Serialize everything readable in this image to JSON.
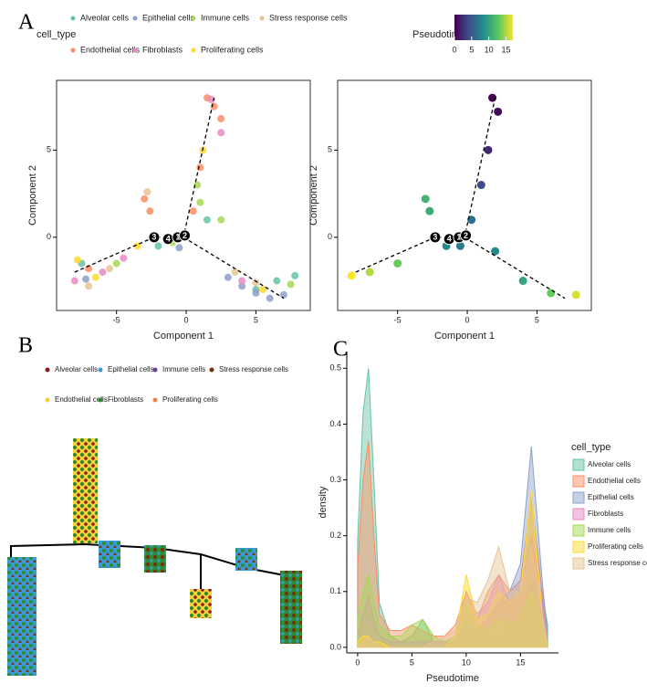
{
  "panel_labels": [
    "A",
    "B",
    "C"
  ],
  "chart_data": [
    {
      "type": "scatter",
      "xlabel": "Component 1",
      "ylabel": "Component 2",
      "xlim": [
        -9.3,
        8.9
      ],
      "ylim": [
        -4.2,
        9
      ],
      "xticks": [
        -5,
        0,
        5
      ],
      "yticks": [
        0,
        5
      ],
      "legend_title": "cell_type",
      "trajectory": {
        "x": [
          -8,
          -2.3,
          -0.2,
          2,
          null,
          -0.2,
          7
        ],
        "y": [
          -2,
          0,
          0,
          8,
          null,
          0,
          -3.5
        ]
      },
      "branch_points": [
        {
          "label": "3",
          "x": -2.3,
          "y": 0
        },
        {
          "label": "4",
          "x": -1.3,
          "y": -0.1
        },
        {
          "label": "1",
          "x": -0.6,
          "y": 0
        },
        {
          "label": "2",
          "x": -0.1,
          "y": 0.1
        }
      ],
      "series": [
        {
          "name": "Alveolar cells",
          "color": "#66c2a5",
          "x": [
            -7.5,
            5,
            6.5,
            7.8,
            1.5,
            -2
          ],
          "y": [
            -1.5,
            -3,
            -2.5,
            -2.2,
            1,
            -0.5
          ]
        },
        {
          "name": "Epithelial cells",
          "color": "#8da0cb",
          "x": [
            3,
            4,
            5,
            6,
            7,
            -0.5,
            -7.2
          ],
          "y": [
            -2.3,
            -2.8,
            -3.2,
            -3.5,
            -3.3,
            -0.6,
            -2.4
          ]
        },
        {
          "name": "Immune cells",
          "color": "#a6d854",
          "x": [
            1,
            2.5,
            -1,
            0.8,
            7.5,
            -5
          ],
          "y": [
            2,
            1,
            -0.3,
            3,
            -2.7,
            -1.5
          ]
        },
        {
          "name": "Stress response cells",
          "color": "#e5c494",
          "x": [
            -7,
            -5.5,
            3.5,
            5,
            -2.8
          ],
          "y": [
            -2.8,
            -1.8,
            -2,
            -2.6,
            2.6
          ]
        },
        {
          "name": "Endothelial cells",
          "color": "#fc8d62",
          "x": [
            1.5,
            2,
            2.5,
            1,
            0.5,
            -3,
            -2.6,
            -7
          ],
          "y": [
            8,
            7.5,
            6.8,
            4,
            1.5,
            2.2,
            1.5,
            -1.8
          ]
        },
        {
          "name": "Fibroblasts",
          "color": "#e78ac3",
          "x": [
            -6,
            -4.5,
            -8,
            1.8,
            2.5,
            4
          ],
          "y": [
            -2,
            -1.2,
            -2.5,
            7.9,
            6,
            -2.5
          ]
        },
        {
          "name": "Proliferating cells",
          "color": "#ffd92f",
          "x": [
            -7.8,
            -6.5,
            -3.5,
            1.2,
            5.5
          ],
          "y": [
            -1.3,
            -2.3,
            -0.5,
            5,
            -3
          ]
        }
      ]
    },
    {
      "type": "scatter",
      "xlabel": "Component 1",
      "ylabel": "Component 2",
      "xlim": [
        -9.3,
        8.9
      ],
      "ylim": [
        -4.2,
        9
      ],
      "xticks": [
        -5,
        0,
        5
      ],
      "yticks": [
        0,
        5
      ],
      "colorbar_title": "Pseudotime",
      "colorbar_lim": [
        0,
        17
      ],
      "colorbar_ticks": [
        0,
        5,
        10,
        15
      ],
      "trajectory": {
        "x": [
          -8,
          -2.3,
          -0.2,
          2,
          null,
          -0.2,
          7
        ],
        "y": [
          -2,
          0,
          0,
          8,
          null,
          0,
          -3.5
        ]
      },
      "branch_points": [
        {
          "label": "3",
          "x": -2.3,
          "y": 0
        },
        {
          "label": "4",
          "x": -1.3,
          "y": -0.1
        },
        {
          "label": "1",
          "x": -0.6,
          "y": 0
        },
        {
          "label": "2",
          "x": -0.1,
          "y": 0.1
        }
      ],
      "x": [
        1.8,
        2.2,
        1.5,
        1,
        0.3,
        -0.5,
        -1.5,
        -3,
        -2.7,
        -5,
        -7,
        -8.3,
        2,
        4,
        6,
        7.8
      ],
      "y": [
        8,
        7.2,
        5,
        3,
        1,
        -0.5,
        -0.5,
        2.2,
        1.5,
        -1.5,
        -2,
        -2.2,
        -0.8,
        -2.5,
        -3.2,
        -3.3
      ],
      "color_values": [
        0,
        0.5,
        2,
        4,
        6,
        7,
        8,
        11,
        10.5,
        13,
        15,
        17,
        8,
        10,
        13,
        16
      ]
    },
    {
      "type": "tree",
      "series": [
        {
          "name": "Alveolar cells",
          "color": "#8b1a1a"
        },
        {
          "name": "Epithelial cells",
          "color": "#3a9bd5"
        },
        {
          "name": "Immune cells",
          "color": "#6a3d9a"
        },
        {
          "name": "Stress response cells",
          "color": "#7a2e12"
        },
        {
          "name": "Endothelial cells",
          "color": "#f4d03f"
        },
        {
          "name": "Fibroblasts",
          "color": "#2e8b2e"
        },
        {
          "name": "Proliferating cells",
          "color": "#f08040"
        }
      ]
    },
    {
      "type": "area",
      "xlabel": "Pseudotime",
      "ylabel": "density",
      "legend_title": "cell_type",
      "xlim": [
        -1,
        18.5
      ],
      "ylim": [
        -0.01,
        0.53
      ],
      "xticks": [
        0,
        5,
        10,
        15
      ],
      "yticks": [
        {
          "value": 0,
          "label": "0.0"
        },
        0.1,
        0.2,
        0.3,
        0.4,
        0.5
      ],
      "x": [
        0,
        0.5,
        1,
        1.5,
        2,
        3,
        4,
        5,
        6,
        7,
        8,
        9,
        10,
        11,
        12,
        13,
        14,
        15,
        16,
        17,
        17.5
      ],
      "series": [
        {
          "name": "Alveolar cells",
          "color": "#66c2a5",
          "values": [
            0.19,
            0.42,
            0.5,
            0.3,
            0.08,
            0.02,
            0.01,
            0.02,
            0.05,
            0.01,
            0.01,
            0.01,
            0.03,
            0.02,
            0.01,
            0.01,
            0.02,
            0.05,
            0.12,
            0.1,
            0.04
          ]
        },
        {
          "name": "Endothelial cells",
          "color": "#fc8d62",
          "values": [
            0.14,
            0.3,
            0.37,
            0.2,
            0.06,
            0.03,
            0.03,
            0.04,
            0.03,
            0.02,
            0.02,
            0.04,
            0.1,
            0.05,
            0.1,
            0.13,
            0.1,
            0.12,
            0.27,
            0.1,
            0
          ]
        },
        {
          "name": "Epithelial cells",
          "color": "#8da0cb",
          "values": [
            0,
            0.01,
            0.01,
            0.01,
            0,
            0,
            0,
            0,
            0,
            0,
            0,
            0.01,
            0.05,
            0.03,
            0.05,
            0.08,
            0.1,
            0.15,
            0.36,
            0.12,
            0.02
          ]
        },
        {
          "name": "Fibroblasts",
          "color": "#e78ac3",
          "values": [
            0.02,
            0.06,
            0.09,
            0.05,
            0.02,
            0.01,
            0.01,
            0.01,
            0.01,
            0.01,
            0.01,
            0.02,
            0.1,
            0.06,
            0.08,
            0.13,
            0.08,
            0.1,
            0.2,
            0.08,
            0.01
          ]
        },
        {
          "name": "Immune cells",
          "color": "#a6d854",
          "values": [
            0.05,
            0.1,
            0.13,
            0.08,
            0.04,
            0.02,
            0.02,
            0.04,
            0.05,
            0.02,
            0.01,
            0.02,
            0.08,
            0.04,
            0.03,
            0.05,
            0.04,
            0.05,
            0.1,
            0.05,
            0.01
          ]
        },
        {
          "name": "Proliferating cells",
          "color": "#ffd92f",
          "values": [
            0.01,
            0.02,
            0.02,
            0.01,
            0.01,
            0,
            0,
            0,
            0,
            0,
            0,
            0.02,
            0.13,
            0.05,
            0.06,
            0.1,
            0.08,
            0.1,
            0.28,
            0.06,
            0
          ]
        },
        {
          "name": "Stress response cells",
          "color": "#e5c494",
          "values": [
            0,
            0.01,
            0.02,
            0.01,
            0,
            0,
            0,
            0,
            0,
            0.01,
            0.02,
            0.03,
            0.09,
            0.08,
            0.12,
            0.18,
            0.1,
            0.1,
            0.18,
            0.06,
            0
          ]
        }
      ]
    }
  ]
}
